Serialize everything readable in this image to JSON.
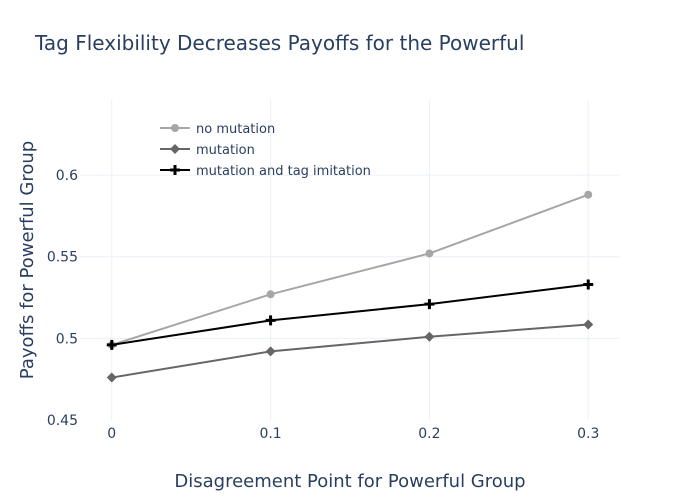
{
  "chart_data": {
    "type": "line",
    "title": "Tag Flexibility Decreases Payoffs for the Powerful",
    "xlabel": "Disagreement Point for Powerful Group",
    "ylabel": "Payoffs for Powerful Group",
    "x": [
      0,
      0.1,
      0.2,
      0.3
    ],
    "xlim": [
      -0.02,
      0.32
    ],
    "ylim": [
      0.45,
      0.646
    ],
    "xticks": [
      0,
      0.1,
      0.2,
      0.3
    ],
    "xtick_labels": [
      "0",
      "0.1",
      "0.2",
      "0.3"
    ],
    "yticks": [
      0.45,
      0.5,
      0.55,
      0.6
    ],
    "ytick_labels": [
      "0.45",
      "0.5",
      "0.55",
      "0.6"
    ],
    "grid": true,
    "legend_placement": "top-left",
    "series": [
      {
        "name": "no mutation",
        "color": "#a6a6a6",
        "marker": "circle",
        "values": [
          0.496,
          0.527,
          0.552,
          0.588
        ]
      },
      {
        "name": "mutation",
        "color": "#666666",
        "marker": "diamond",
        "values": [
          0.476,
          0.492,
          0.501,
          0.5085
        ]
      },
      {
        "name": "mutation and tag imitation",
        "color": "#000000",
        "marker": "cross",
        "values": [
          0.496,
          0.511,
          0.521,
          0.533
        ]
      }
    ]
  }
}
